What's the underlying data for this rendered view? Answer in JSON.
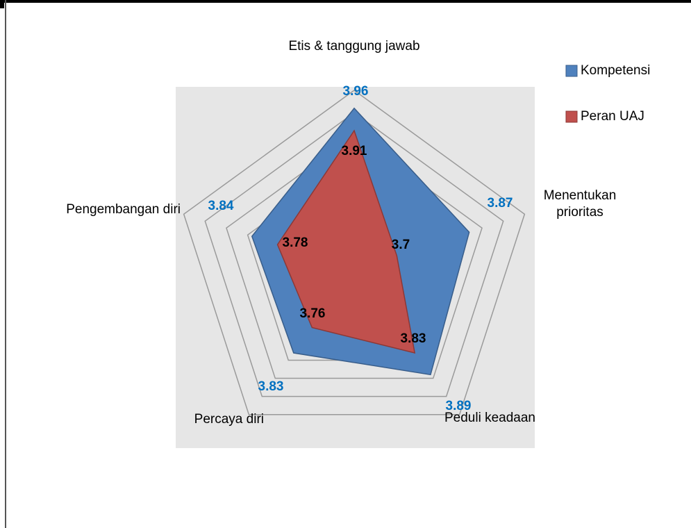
{
  "chart_data": {
    "type": "radar",
    "categories": [
      "Etis & tanggung jawab",
      "Menentukan prioritas",
      "Peduli keadaan",
      "Percaya diri",
      "Pengembangan diri"
    ],
    "series": [
      {
        "name": "Kompetensi",
        "color": "#4f81bd",
        "values": [
          3.96,
          3.87,
          3.89,
          3.83,
          3.84
        ]
      },
      {
        "name": "Peran UAJ",
        "color": "#c0504d",
        "values": [
          3.91,
          3.7,
          3.83,
          3.76,
          3.78
        ]
      }
    ],
    "ylim": [
      3.6,
      4.0
    ],
    "yticks": [
      3.65,
      3.7,
      3.75,
      3.8,
      3.85,
      3.9,
      3.95,
      4.0
    ],
    "legend": "right"
  }
}
